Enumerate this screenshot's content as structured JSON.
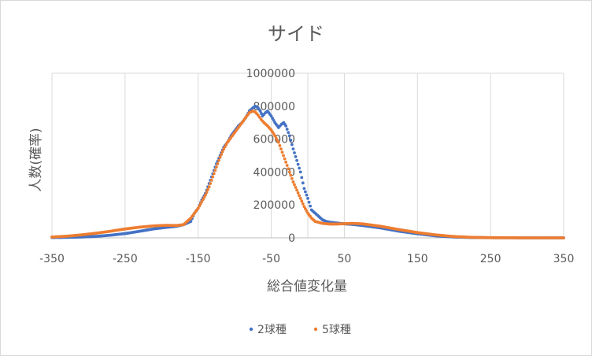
{
  "chart_data": {
    "type": "scatter",
    "title": "サイド",
    "xlabel": "総合値変化量",
    "ylabel": "人数(確率)",
    "xlim": [
      -350,
      350
    ],
    "ylim": [
      0,
      1000000
    ],
    "xticks": [
      -350,
      -250,
      -150,
      -50,
      50,
      150,
      250,
      350
    ],
    "yticks": [
      0,
      200000,
      400000,
      600000,
      800000,
      1000000
    ],
    "xtick_labels": [
      "-350",
      "-250",
      "-150",
      "-50",
      "50",
      "150",
      "250",
      "350"
    ],
    "ytick_labels": [
      "0",
      "200000",
      "400000",
      "600000",
      "800000",
      "1000000"
    ],
    "grid": "vertical",
    "legend_position": "bottom",
    "series": [
      {
        "name": "2球種",
        "color": "#4472c4",
        "marker": "dot",
        "points": [
          [
            -350,
            2000
          ],
          [
            -330,
            3000
          ],
          [
            -310,
            5000
          ],
          [
            -290,
            9000
          ],
          [
            -270,
            16000
          ],
          [
            -250,
            26000
          ],
          [
            -230,
            40000
          ],
          [
            -210,
            55000
          ],
          [
            -195,
            63000
          ],
          [
            -180,
            70000
          ],
          [
            -170,
            80000
          ],
          [
            -160,
            100000
          ],
          [
            -155,
            150000
          ],
          [
            -150,
            180000
          ],
          [
            -145,
            230000
          ],
          [
            -140,
            270000
          ],
          [
            -135,
            330000
          ],
          [
            -130,
            390000
          ],
          [
            -125,
            450000
          ],
          [
            -120,
            500000
          ],
          [
            -115,
            550000
          ],
          [
            -110,
            580000
          ],
          [
            -105,
            620000
          ],
          [
            -100,
            650000
          ],
          [
            -95,
            680000
          ],
          [
            -90,
            700000
          ],
          [
            -85,
            730000
          ],
          [
            -80,
            770000
          ],
          [
            -75,
            790000
          ],
          [
            -72,
            800000
          ],
          [
            -68,
            790000
          ],
          [
            -65,
            770000
          ],
          [
            -62,
            740000
          ],
          [
            -58,
            760000
          ],
          [
            -55,
            770000
          ],
          [
            -50,
            740000
          ],
          [
            -45,
            700000
          ],
          [
            -40,
            670000
          ],
          [
            -36,
            690000
          ],
          [
            -33,
            700000
          ],
          [
            -30,
            680000
          ],
          [
            -25,
            620000
          ],
          [
            -20,
            540000
          ],
          [
            -15,
            470000
          ],
          [
            -10,
            400000
          ],
          [
            -5,
            300000
          ],
          [
            0,
            240000
          ],
          [
            5,
            170000
          ],
          [
            10,
            150000
          ],
          [
            15,
            130000
          ],
          [
            20,
            110000
          ],
          [
            25,
            100000
          ],
          [
            30,
            95000
          ],
          [
            40,
            90000
          ],
          [
            50,
            85000
          ],
          [
            60,
            82000
          ],
          [
            75,
            75000
          ],
          [
            100,
            60000
          ],
          [
            125,
            40000
          ],
          [
            150,
            25000
          ],
          [
            175,
            12000
          ],
          [
            200,
            5000
          ],
          [
            225,
            2000
          ],
          [
            250,
            1000
          ],
          [
            300,
            0
          ],
          [
            350,
            0
          ]
        ]
      },
      {
        "name": "5球種",
        "color": "#ed7d31",
        "marker": "dot",
        "points": [
          [
            -350,
            5000
          ],
          [
            -330,
            10000
          ],
          [
            -310,
            18000
          ],
          [
            -290,
            28000
          ],
          [
            -270,
            40000
          ],
          [
            -250,
            54000
          ],
          [
            -230,
            65000
          ],
          [
            -210,
            73000
          ],
          [
            -195,
            76000
          ],
          [
            -180,
            75000
          ],
          [
            -170,
            80000
          ],
          [
            -165,
            100000
          ],
          [
            -160,
            120000
          ],
          [
            -155,
            150000
          ],
          [
            -150,
            180000
          ],
          [
            -145,
            220000
          ],
          [
            -140,
            260000
          ],
          [
            -135,
            310000
          ],
          [
            -130,
            370000
          ],
          [
            -125,
            430000
          ],
          [
            -120,
            490000
          ],
          [
            -115,
            540000
          ],
          [
            -110,
            580000
          ],
          [
            -105,
            610000
          ],
          [
            -100,
            640000
          ],
          [
            -95,
            670000
          ],
          [
            -90,
            700000
          ],
          [
            -85,
            730000
          ],
          [
            -80,
            760000
          ],
          [
            -76,
            770000
          ],
          [
            -72,
            765000
          ],
          [
            -68,
            745000
          ],
          [
            -64,
            720000
          ],
          [
            -60,
            700000
          ],
          [
            -55,
            680000
          ],
          [
            -50,
            655000
          ],
          [
            -45,
            620000
          ],
          [
            -40,
            580000
          ],
          [
            -35,
            520000
          ],
          [
            -30,
            460000
          ],
          [
            -25,
            400000
          ],
          [
            -20,
            340000
          ],
          [
            -15,
            290000
          ],
          [
            -10,
            240000
          ],
          [
            -5,
            190000
          ],
          [
            0,
            150000
          ],
          [
            5,
            120000
          ],
          [
            10,
            100000
          ],
          [
            20,
            88000
          ],
          [
            30,
            84000
          ],
          [
            40,
            84000
          ],
          [
            50,
            86000
          ],
          [
            60,
            88000
          ],
          [
            75,
            85000
          ],
          [
            100,
            70000
          ],
          [
            125,
            50000
          ],
          [
            150,
            32000
          ],
          [
            175,
            18000
          ],
          [
            200,
            8000
          ],
          [
            225,
            3000
          ],
          [
            250,
            1000
          ],
          [
            300,
            0
          ],
          [
            350,
            0
          ]
        ]
      }
    ]
  }
}
